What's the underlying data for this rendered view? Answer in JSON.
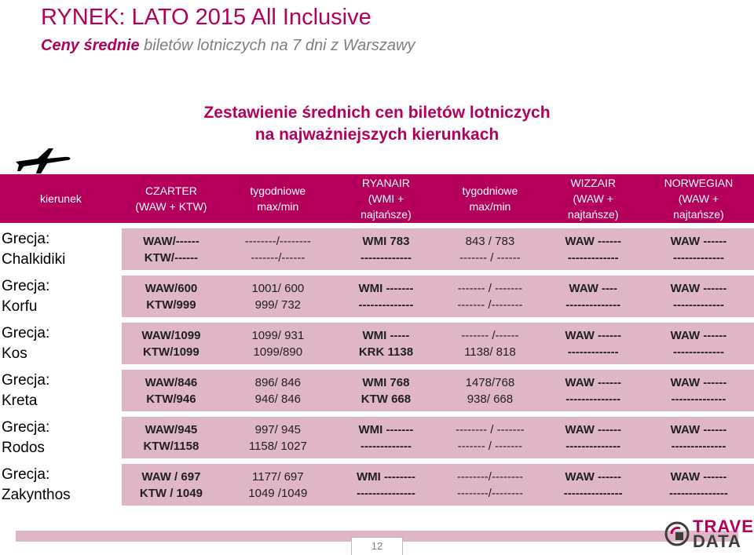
{
  "slide": {
    "title": "RYNEK: LATO 2015 All Inclusive",
    "subtitle_strong": "Ceny średnie",
    "subtitle_rest": " biletów lotniczych na 7 dni z Warszawy",
    "heading_line1": "Zestawienie średnich cen biletów lotniczych",
    "heading_line2": "na najważniejszych kierunkach",
    "page_number": "12"
  },
  "colors": {
    "accent": "#b5005b",
    "row_fill": "#dfb6c7",
    "muted": "#7f7f7f"
  },
  "logo": {
    "word1": "TRAVEL",
    "word2": "DATA"
  },
  "table": {
    "headers": [
      {
        "lines": [
          "kierunek"
        ]
      },
      {
        "lines": [
          "CZARTER",
          "(WAW + KTW)"
        ]
      },
      {
        "lines": [
          "tygodniowe",
          "max/min"
        ]
      },
      {
        "lines": [
          "RYANAIR",
          "(WMI +",
          "najtańsze)"
        ]
      },
      {
        "lines": [
          "tygodniowe",
          "max/min"
        ]
      },
      {
        "lines": [
          "WIZZAIR",
          "(WAW +",
          "najtańsze)"
        ]
      },
      {
        "lines": [
          "NORWEGIAN",
          "(WAW +",
          "najtańsze)"
        ]
      }
    ],
    "rows": [
      {
        "dest": [
          "Grecja:",
          "Chalkidiki"
        ],
        "cells": [
          [
            "WAW/------",
            "KTW/------"
          ],
          [
            "--------/--------",
            "-------/------"
          ],
          [
            "WMI  783",
            "-------------"
          ],
          [
            "843 / 783",
            "------- / ------"
          ],
          [
            "WAW ------",
            "-------------"
          ],
          [
            "WAW ------",
            "-------------"
          ]
        ]
      },
      {
        "dest": [
          "Grecja:",
          "Korfu"
        ],
        "cells": [
          [
            "WAW/600",
            "KTW/999"
          ],
          [
            "1001/ 600",
            "999/ 732"
          ],
          [
            "WMI -------",
            "--------------"
          ],
          [
            "------- / -------",
            "------- /--------"
          ],
          [
            "WAW  ----",
            "--------------"
          ],
          [
            "WAW ------",
            "-------------"
          ]
        ]
      },
      {
        "dest": [
          "Grecja:",
          "Kos"
        ],
        "cells": [
          [
            "WAW/1099",
            "KTW/1099"
          ],
          [
            "1099/ 931",
            "1099/890"
          ],
          [
            "WMI  -----",
            "KRK  1138"
          ],
          [
            "------- /------",
            "1138/ 818"
          ],
          [
            "WAW ------",
            "-------------"
          ],
          [
            "WAW ------",
            "-------------"
          ]
        ]
      },
      {
        "dest": [
          "Grecja:",
          "Kreta"
        ],
        "cells": [
          [
            "WAW/846",
            "KTW/946"
          ],
          [
            "896/ 846",
            "946/ 846"
          ],
          [
            "WMI 768",
            "KTW  668"
          ],
          [
            "1478/768",
            "938/ 668"
          ],
          [
            "WAW ------",
            "--------------"
          ],
          [
            "WAW ------",
            "--------------"
          ]
        ]
      },
      {
        "dest": [
          "Grecja:",
          "Rodos"
        ],
        "cells": [
          [
            "WAW/945",
            "KTW/1158"
          ],
          [
            "997/ 945",
            "1158/ 1027"
          ],
          [
            "WMI -------",
            "-------------"
          ],
          [
            "-------- / -------",
            "------- / -------"
          ],
          [
            "WAW ------",
            "--------------"
          ],
          [
            "WAW ------",
            "--------------"
          ]
        ]
      },
      {
        "dest": [
          "Grecja:",
          "Zakynthos"
        ],
        "cells": [
          [
            "WAW / 697",
            "KTW / 1049"
          ],
          [
            "1177/ 697",
            "1049 /1049"
          ],
          [
            "WMI --------",
            "---------------"
          ],
          [
            "--------/--------",
            "--------/--------"
          ],
          [
            "WAW ------",
            "---------------"
          ],
          [
            "WAW ------",
            "---------------"
          ]
        ]
      }
    ]
  }
}
